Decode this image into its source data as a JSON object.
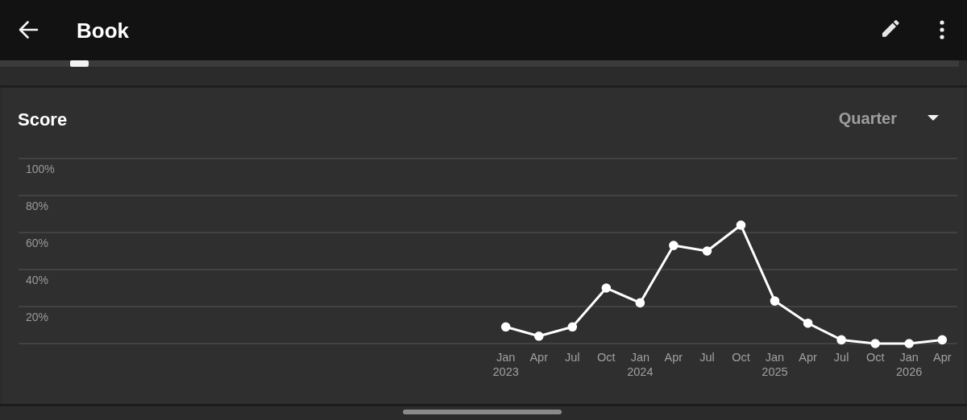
{
  "chart_data": {
    "type": "line",
    "title": "Score",
    "annotations": [
      "Book",
      "Quarter"
    ],
    "x": [
      "2023-01",
      "2023-04",
      "2023-07",
      "2023-10",
      "2024-01",
      "2024-04",
      "2024-07",
      "2024-10",
      "2025-01",
      "2025-04",
      "2025-07",
      "2025-10",
      "2026-01",
      "2026-04"
    ],
    "values": [
      9,
      4,
      9,
      30,
      22,
      53,
      50,
      64,
      23,
      11,
      2,
      0,
      0,
      2
    ],
    "color": "#ffffff",
    "xlim": [
      "2019-05-18",
      "2026-05-12"
    ],
    "xticks": [
      {
        "value": "2023-01",
        "label": "Jan\n2023"
      },
      {
        "value": "2023-04",
        "label": "Apr"
      },
      {
        "value": "2023-07",
        "label": "Jul"
      },
      {
        "value": "2023-10",
        "label": "Oct"
      },
      {
        "value": "2024-01",
        "label": "Jan\n2024"
      },
      {
        "value": "2024-04",
        "label": "Apr"
      },
      {
        "value": "2024-07",
        "label": "Jul"
      },
      {
        "value": "2024-10",
        "label": "Oct"
      },
      {
        "value": "2025-01",
        "label": "Jan\n2025"
      },
      {
        "value": "2025-04",
        "label": "Apr"
      },
      {
        "value": "2025-07",
        "label": "Jul"
      },
      {
        "value": "2025-10",
        "label": "Oct"
      },
      {
        "value": "2026-01",
        "label": "Jan\n2026"
      },
      {
        "value": "2026-04",
        "label": "Apr"
      }
    ],
    "ylim": [
      0,
      100
    ],
    "yticks": [
      {
        "value": 0,
        "label": null
      },
      {
        "value": 20,
        "label": "20%"
      },
      {
        "value": 40,
        "label": "40%"
      },
      {
        "value": 60,
        "label": "60%"
      },
      {
        "value": 80,
        "label": "80%"
      },
      {
        "value": 100,
        "label": "100%"
      }
    ],
    "grid": "y",
    "marker": "circle",
    "line_style": "solid"
  }
}
